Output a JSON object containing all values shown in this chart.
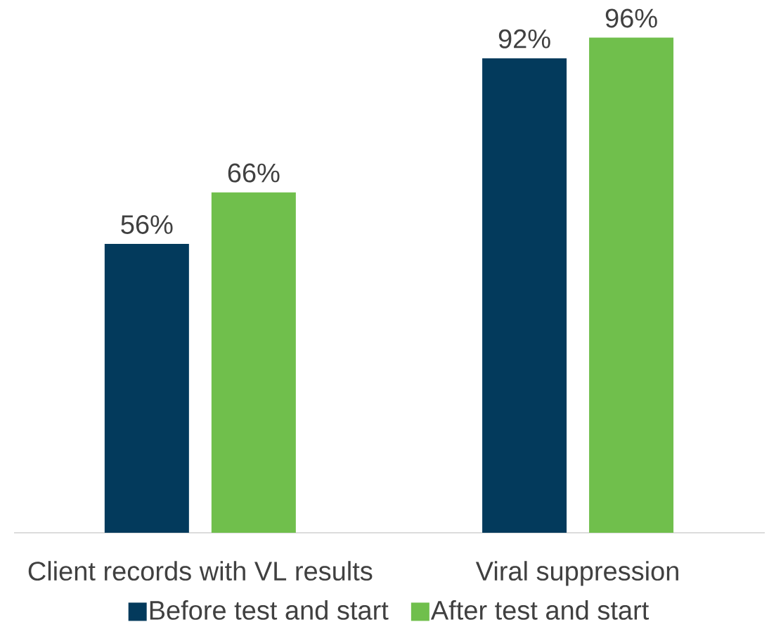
{
  "chart_data": {
    "type": "bar",
    "categories": [
      "Client records with VL results",
      "Viral suppression"
    ],
    "series": [
      {
        "name": "Before test and start",
        "color": "#033a5c",
        "values": [
          56,
          92
        ],
        "value_labels": [
          "56%",
          "92%"
        ]
      },
      {
        "name": "After test and start",
        "color": "#70bf4c",
        "values": [
          66,
          96
        ],
        "value_labels": [
          "66%",
          "96%"
        ]
      }
    ],
    "tick_labels": "x",
    "legend": "bottom"
  }
}
